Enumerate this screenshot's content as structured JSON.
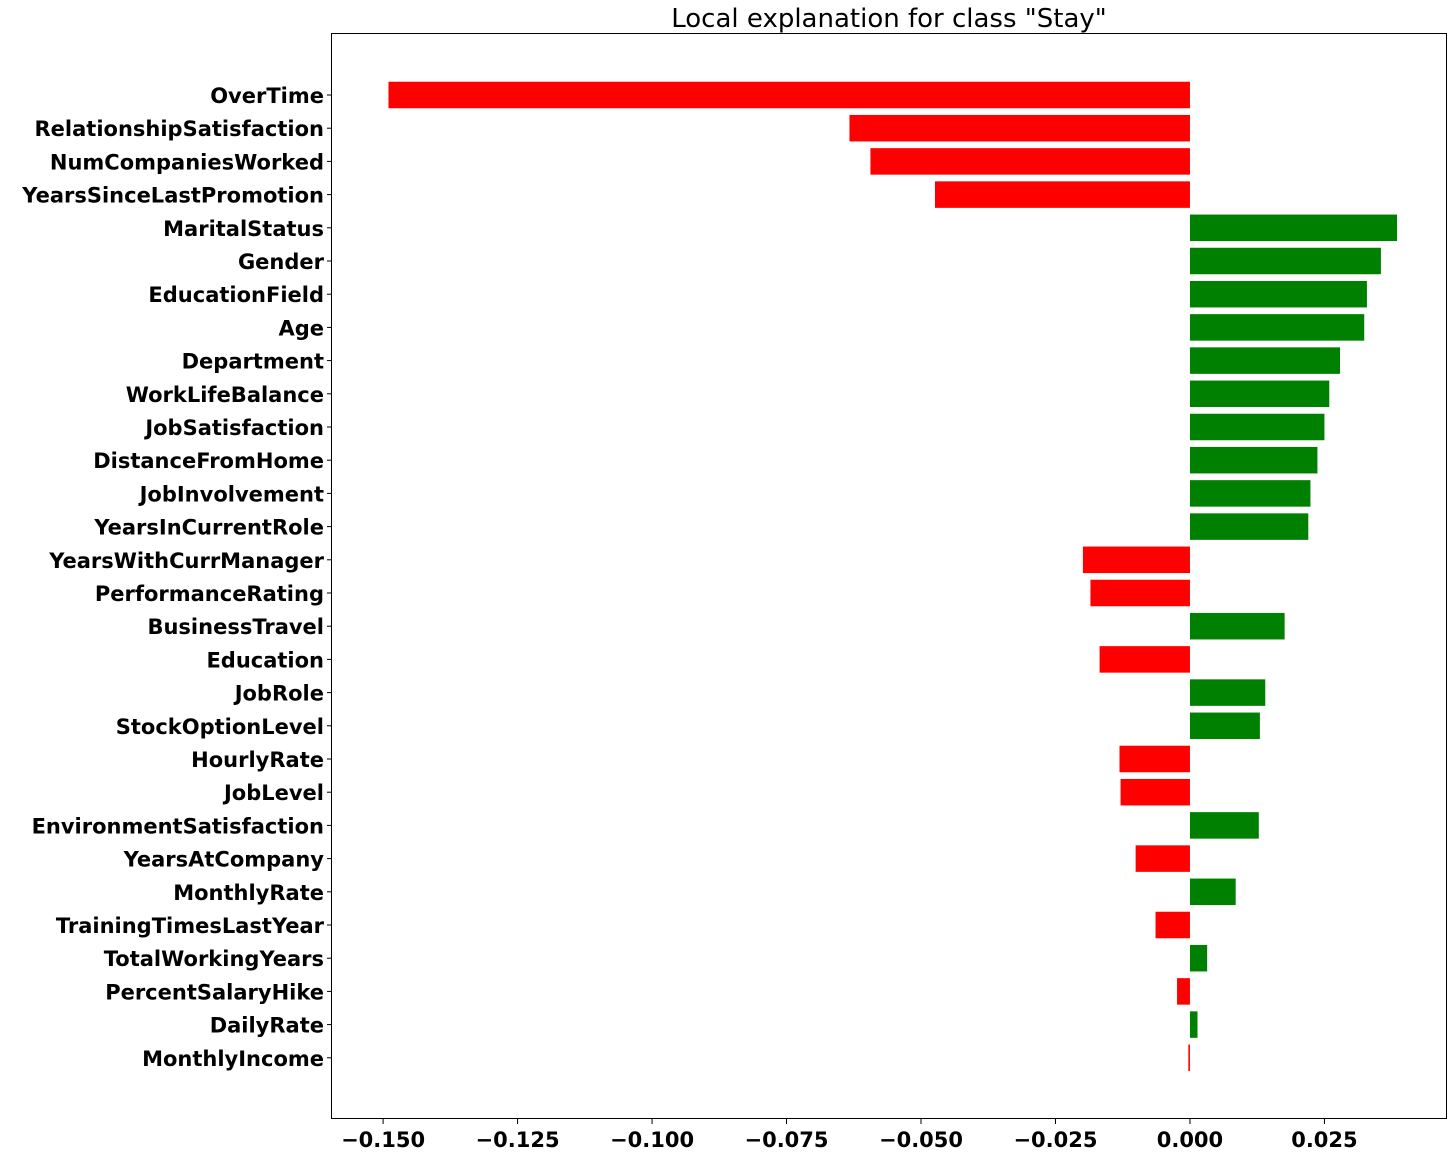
{
  "chart_data": {
    "type": "bar",
    "orientation": "horizontal",
    "title": "Local explanation for class \"Stay\"",
    "xlabel": "",
    "ylabel": "",
    "xlim": [
      -0.1595,
      0.0476
    ],
    "xticks": [
      -0.15,
      -0.125,
      -0.1,
      -0.075,
      -0.05,
      -0.025,
      0.0,
      0.025
    ],
    "xtick_labels": [
      "−0.150",
      "−0.125",
      "−0.100",
      "−0.075",
      "−0.050",
      "−0.025",
      "0.000",
      "0.025"
    ],
    "grid": false,
    "legend": "none",
    "colors": {
      "negative": "#ff0000",
      "positive": "#008000"
    },
    "categories": [
      "OverTime",
      "RelationshipSatisfaction",
      "NumCompaniesWorked",
      "YearsSinceLastPromotion",
      "MaritalStatus",
      "Gender",
      "EducationField",
      "Age",
      "Department",
      "WorkLifeBalance",
      "JobSatisfaction",
      "DistanceFromHome",
      "JobInvolvement",
      "YearsInCurrentRole",
      "YearsWithCurrManager",
      "PerformanceRating",
      "BusinessTravel",
      "Education",
      "JobRole",
      "StockOptionLevel",
      "HourlyRate",
      "JobLevel",
      "EnvironmentSatisfaction",
      "YearsAtCompany",
      "MonthlyRate",
      "TrainingTimesLastYear",
      "TotalWorkingYears",
      "PercentSalaryHike",
      "DailyRate",
      "MonthlyIncome"
    ],
    "values": [
      -0.149,
      -0.0633,
      -0.0594,
      -0.0474,
      0.0385,
      0.0355,
      0.0329,
      0.0324,
      0.0279,
      0.0259,
      0.025,
      0.0237,
      0.0224,
      0.022,
      -0.0199,
      -0.0185,
      0.0176,
      -0.0168,
      0.014,
      0.013,
      -0.0131,
      -0.0129,
      0.0128,
      -0.0101,
      0.0085,
      -0.0064,
      0.0032,
      -0.0024,
      0.0014,
      -0.0003
    ]
  }
}
